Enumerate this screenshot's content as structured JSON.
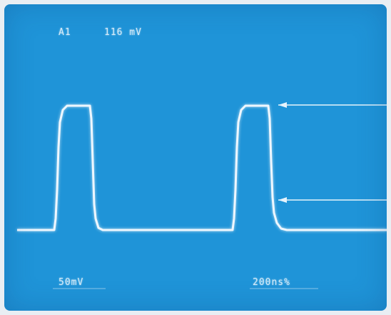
{
  "scope": {
    "measurement": {
      "channel": "A1",
      "value": "116 mV"
    },
    "scales": {
      "volts_per_div": "50mV",
      "time_per_div": "200ns%"
    }
  },
  "colors": {
    "screen": "#1f94d8",
    "trace": "#eef7ff",
    "text": "#d6ecfa"
  }
}
